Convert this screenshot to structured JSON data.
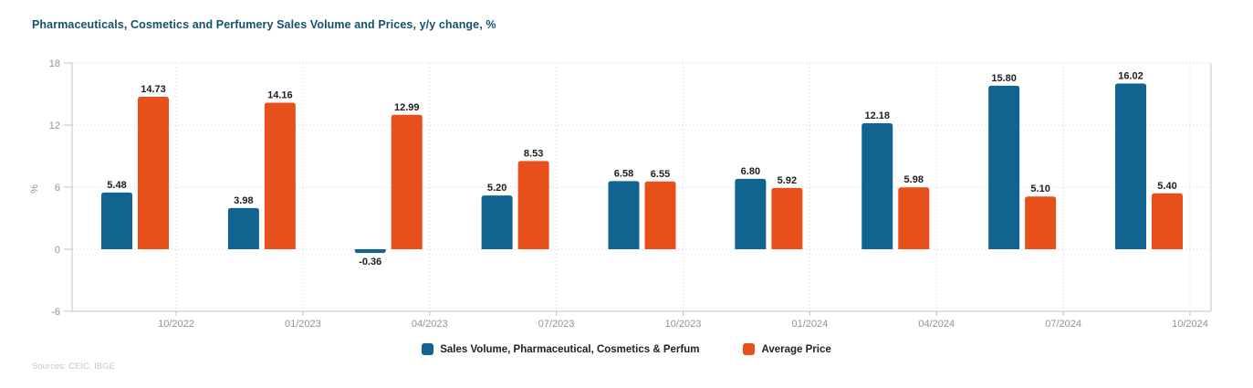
{
  "title": "Pharmaceuticals, Cosmetics and Perfumery Sales Volume and Prices, y/y change, %",
  "sources": "Sources: CEIC, IBGE",
  "chart_data": {
    "type": "bar",
    "categories": [
      "10/2022",
      "01/2023",
      "04/2023",
      "07/2023",
      "10/2023",
      "01/2024",
      "04/2024",
      "07/2024",
      "10/2024"
    ],
    "series": [
      {
        "name": "Sales Volume, Pharmaceutical, Cosmetics & Perfum",
        "color": "#116490",
        "values": [
          5.48,
          3.98,
          -0.36,
          5.2,
          6.58,
          6.8,
          12.18,
          15.8,
          16.02
        ]
      },
      {
        "name": "Average Price",
        "color": "#e8501b",
        "values": [
          14.73,
          14.16,
          12.99,
          8.53,
          6.55,
          5.92,
          5.98,
          5.1,
          5.4
        ]
      }
    ],
    "title": "Pharmaceuticals, Cosmetics and Perfumery Sales Volume and Prices, y/y change, %",
    "xlabel": "",
    "ylabel": "%",
    "ylim": [
      -6,
      18
    ],
    "yticks": [
      18,
      12,
      6,
      0,
      -6
    ],
    "grid": true,
    "value_labels": true,
    "legend_position": "bottom"
  },
  "colors": {
    "axis_line": "#b9c4cb",
    "gridline": "#dadce0",
    "tick_text": "#8d939c",
    "bar_label": "#1e1e1e",
    "title_text": "#15516f",
    "legend_text": "#222222",
    "sources_text": "#c5c7d1"
  }
}
